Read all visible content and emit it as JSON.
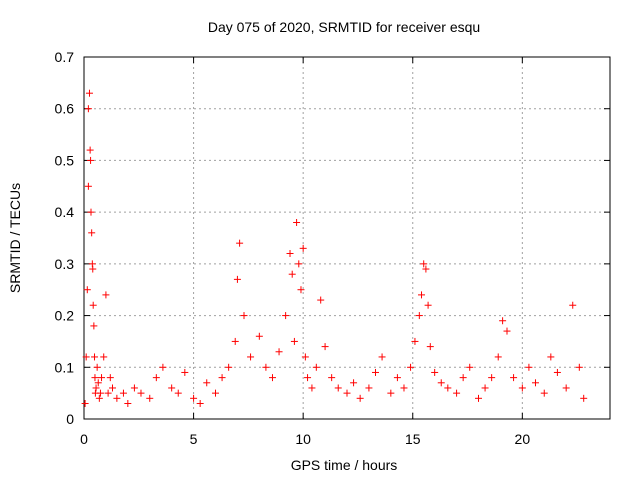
{
  "chart_data": {
    "type": "scatter",
    "title": "Day 075 of 2020, SRMTID for receiver esqu",
    "xlabel": "GPS time / hours",
    "ylabel": "SRMTID / TECUs",
    "xlim": [
      0,
      24
    ],
    "ylim": [
      0,
      0.7
    ],
    "xticks": [
      0,
      5,
      10,
      15,
      20
    ],
    "xtick_labels": [
      "0",
      "5",
      "10",
      "15",
      "20"
    ],
    "yticks": [
      0,
      0.1,
      0.2,
      0.3,
      0.4,
      0.5,
      0.6,
      0.7
    ],
    "ytick_labels": [
      "0",
      "0.1",
      "0.2",
      "0.3",
      "0.4",
      "0.5",
      "0.6",
      "0.7"
    ],
    "grid": true,
    "marker": "+",
    "color": "#ff0000",
    "series": [
      {
        "name": "SRMTID",
        "x": [
          0.05,
          0.1,
          0.15,
          0.2,
          0.2,
          0.25,
          0.28,
          0.3,
          0.32,
          0.35,
          0.38,
          0.4,
          0.42,
          0.45,
          0.48,
          0.5,
          0.52,
          0.55,
          0.6,
          0.65,
          0.7,
          0.75,
          0.8,
          0.9,
          1.0,
          1.1,
          1.2,
          1.3,
          1.5,
          1.8,
          2.0,
          2.3,
          2.6,
          3.0,
          3.3,
          3.6,
          4.0,
          4.3,
          4.6,
          5.0,
          5.3,
          5.6,
          6.0,
          6.3,
          6.6,
          6.9,
          7.0,
          7.1,
          7.3,
          7.6,
          8.0,
          8.3,
          8.6,
          8.9,
          9.2,
          9.4,
          9.5,
          9.6,
          9.7,
          9.8,
          9.9,
          10.0,
          10.1,
          10.2,
          10.4,
          10.6,
          10.8,
          11.0,
          11.3,
          11.6,
          12.0,
          12.3,
          12.6,
          13.0,
          13.3,
          13.6,
          14.0,
          14.3,
          14.6,
          14.9,
          15.1,
          15.3,
          15.4,
          15.5,
          15.6,
          15.7,
          15.8,
          16.0,
          16.3,
          16.6,
          17.0,
          17.3,
          17.6,
          18.0,
          18.3,
          18.6,
          18.9,
          19.1,
          19.3,
          19.6,
          20.0,
          20.3,
          20.6,
          21.0,
          21.3,
          21.6,
          22.0,
          22.3,
          22.6,
          22.8
        ],
        "y": [
          0.03,
          0.12,
          0.25,
          0.45,
          0.6,
          0.63,
          0.52,
          0.5,
          0.4,
          0.36,
          0.3,
          0.29,
          0.22,
          0.18,
          0.12,
          0.08,
          0.05,
          0.06,
          0.1,
          0.07,
          0.04,
          0.05,
          0.08,
          0.12,
          0.24,
          0.05,
          0.08,
          0.06,
          0.04,
          0.05,
          0.03,
          0.06,
          0.05,
          0.04,
          0.08,
          0.1,
          0.06,
          0.05,
          0.09,
          0.04,
          0.03,
          0.07,
          0.05,
          0.08,
          0.1,
          0.15,
          0.27,
          0.34,
          0.2,
          0.12,
          0.16,
          0.1,
          0.08,
          0.13,
          0.2,
          0.32,
          0.28,
          0.15,
          0.38,
          0.3,
          0.25,
          0.33,
          0.12,
          0.08,
          0.06,
          0.1,
          0.23,
          0.14,
          0.08,
          0.06,
          0.05,
          0.07,
          0.04,
          0.06,
          0.09,
          0.12,
          0.05,
          0.08,
          0.06,
          0.1,
          0.15,
          0.2,
          0.24,
          0.3,
          0.29,
          0.22,
          0.14,
          0.09,
          0.07,
          0.06,
          0.05,
          0.08,
          0.1,
          0.04,
          0.06,
          0.08,
          0.12,
          0.19,
          0.17,
          0.08,
          0.06,
          0.1,
          0.07,
          0.05,
          0.12,
          0.09,
          0.06,
          0.22,
          0.1,
          0.04
        ]
      }
    ]
  }
}
